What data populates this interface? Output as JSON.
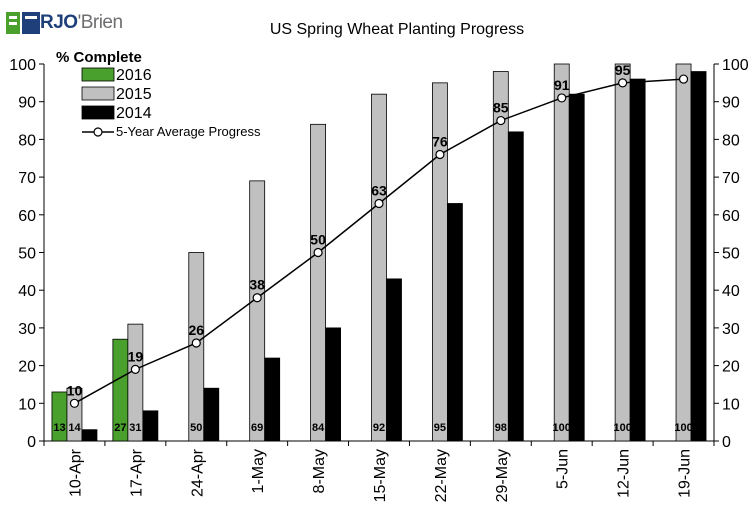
{
  "brand": {
    "logo_text_a": "RJO",
    "logo_text_b": "'Brien",
    "logo_color": "#1f3f7a"
  },
  "chart_data": {
    "type": "bar",
    "title": "US Spring Wheat Planting Progress",
    "ylabel": "% Complete",
    "xlabel": "",
    "ylim": [
      0,
      100
    ],
    "yticks": [
      0,
      10,
      20,
      30,
      40,
      50,
      60,
      70,
      80,
      90,
      100
    ],
    "grid": false,
    "legend_position": "top-left",
    "categories": [
      "10-Apr",
      "17-Apr",
      "24-Apr",
      "1-May",
      "8-May",
      "15-May",
      "22-May",
      "29-May",
      "5-Jun",
      "12-Jun",
      "19-Jun"
    ],
    "series": [
      {
        "name": "2016",
        "kind": "bar",
        "color": "#4aa02c",
        "values": [
          13,
          27,
          null,
          null,
          null,
          null,
          null,
          null,
          null,
          null,
          null
        ],
        "labels": [
          "13",
          "27",
          null,
          null,
          null,
          null,
          null,
          null,
          null,
          null,
          null
        ]
      },
      {
        "name": "2015",
        "kind": "bar",
        "color": "#c0c0c0",
        "values": [
          14,
          31,
          50,
          69,
          84,
          92,
          95,
          98,
          100,
          100,
          100
        ],
        "labels": [
          "14",
          "31",
          "50",
          "69",
          "84",
          "92",
          "95",
          "98",
          "100",
          "100",
          "100"
        ]
      },
      {
        "name": "2014",
        "kind": "bar",
        "color": "#000000",
        "values": [
          3,
          8,
          14,
          22,
          30,
          43,
          63,
          82,
          92,
          96,
          98
        ],
        "labels": [
          null,
          null,
          null,
          null,
          null,
          null,
          null,
          null,
          null,
          null,
          null
        ]
      },
      {
        "name": "5-Year Average Progress",
        "kind": "line",
        "color": "#000000",
        "values": [
          10,
          19,
          26,
          38,
          50,
          63,
          76,
          85,
          91,
          95,
          96
        ],
        "labels": [
          "10",
          "19",
          "26",
          "38",
          "50",
          "63",
          "76",
          "85",
          "91",
          "95",
          null
        ]
      }
    ]
  }
}
